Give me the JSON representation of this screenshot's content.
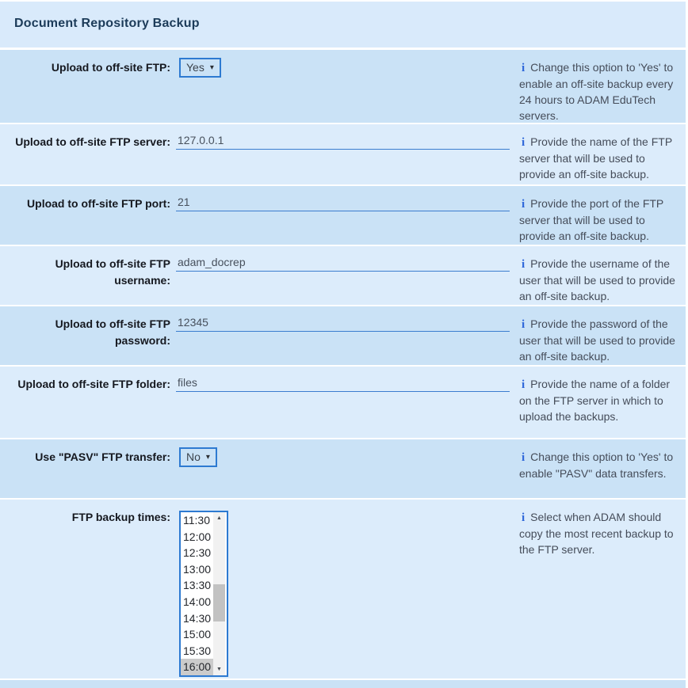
{
  "title": "Document Repository Backup",
  "glyphs": {
    "info_icon": "i",
    "chevron_down": "▾",
    "scroll_up": "▲",
    "scroll_down": "▼"
  },
  "colors": {
    "accent_blue": "#2d7ad1",
    "row_dark": "#cae2f6",
    "row_light": "#dcecfb",
    "header_bg": "#d9eafb",
    "selected_option_bg": "#cbcbcb"
  },
  "rows": [
    {
      "label": "Upload to off-site FTP:",
      "control": "select",
      "value": "Yes",
      "info": "Change this option to 'Yes' to enable an off-site backup every 24 hours to ADAM EduTech servers."
    },
    {
      "label": "Upload to off-site FTP server:",
      "control": "text",
      "value": "127.0.0.1",
      "info": "Provide the name of the FTP server that will be used to provide an off-site backup."
    },
    {
      "label": "Upload to off-site FTP port:",
      "control": "text",
      "value": "21",
      "info": "Provide the port of the FTP server that will be used to provide an off-site backup."
    },
    {
      "label": "Upload to off-site FTP username:",
      "control": "text",
      "value": "adam_docrep",
      "info": "Provide the username of the user that will be used to provide an off-site backup."
    },
    {
      "label": "Upload to off-site FTP password:",
      "control": "text",
      "value": "12345",
      "info": "Provide the password of the user that will be used to provide an off-site backup."
    },
    {
      "label": "Upload to off-site FTP folder:",
      "control": "text",
      "value": "files",
      "info": "Provide the name of a folder on the FTP server in which to upload the backups."
    },
    {
      "label": "Use \"PASV\" FTP transfer:",
      "control": "select",
      "value": "No",
      "info": "Change this option to 'Yes' to enable \"PASV\" data transfers."
    },
    {
      "label": "FTP backup times:",
      "control": "listbox",
      "options": [
        "11:30",
        "12:00",
        "12:30",
        "13:00",
        "13:30",
        "14:00",
        "14:30",
        "15:00",
        "15:30",
        "16:00"
      ],
      "selected": "16:00",
      "info": "Select when ADAM should copy the most recent backup to the FTP server."
    }
  ]
}
